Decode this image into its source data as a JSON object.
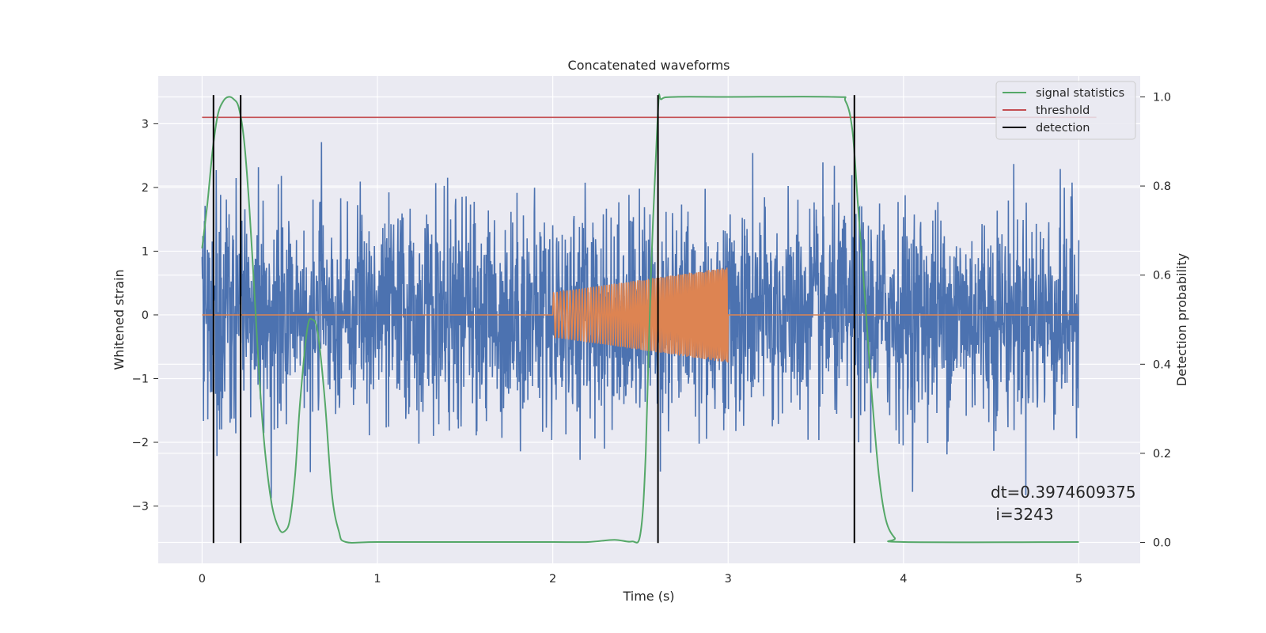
{
  "chart_data": {
    "type": "line",
    "title": "Concatenated waveforms",
    "xlabel": "Time (s)",
    "ylabel": "Whitened strain",
    "ylabel_right": "Detection probability",
    "xlim": [
      -0.25,
      5.35
    ],
    "ylim": [
      -3.9,
      3.75
    ],
    "ylim_right": [
      -0.047,
      1.047
    ],
    "xticks": [
      0,
      1,
      2,
      3,
      4,
      5
    ],
    "yticks": [
      -3,
      -2,
      -1,
      0,
      1,
      2,
      3
    ],
    "yticks_right": [
      0.0,
      0.2,
      0.4,
      0.6,
      0.8,
      1.0
    ],
    "grid": true,
    "legend_position": "top-right",
    "annotation": {
      "line1": "dt=0.3974609375",
      "line2": " i=3243",
      "x": 4.5,
      "y": -3.0
    },
    "series": [
      {
        "name": "",
        "axis": "left",
        "color": "#4c72b0",
        "kind": "noise",
        "x_range": [
          0,
          5
        ],
        "amplitude_sigma": 0.62,
        "peak": 3.3
      },
      {
        "name": "",
        "axis": "left",
        "color": "#dd8452",
        "kind": "chirp",
        "x_range": [
          2,
          3
        ],
        "envelope": [
          0.35,
          0.75
        ],
        "baseline": 0
      },
      {
        "name": "signal statistics",
        "axis": "right",
        "color": "#55a868",
        "x": [
          0,
          0.03,
          0.06,
          0.09,
          0.12,
          0.15,
          0.18,
          0.21,
          0.24,
          0.27,
          0.3,
          0.33,
          0.36,
          0.4,
          0.44,
          0.47,
          0.5,
          0.53,
          0.56,
          0.6,
          0.63,
          0.66,
          0.7,
          0.74,
          0.78,
          0.82,
          1.0,
          1.5,
          2.0,
          2.2,
          2.35,
          2.45,
          2.5,
          2.53,
          2.56,
          2.6,
          2.62,
          2.7,
          3.0,
          3.6,
          3.67,
          3.71,
          3.74,
          3.78,
          3.82,
          3.86,
          3.9,
          3.95,
          4.0,
          5.0
        ],
        "y": [
          0.66,
          0.76,
          0.88,
          0.96,
          0.99,
          1.0,
          0.995,
          0.975,
          0.9,
          0.75,
          0.55,
          0.35,
          0.2,
          0.08,
          0.03,
          0.025,
          0.05,
          0.15,
          0.32,
          0.48,
          0.5,
          0.47,
          0.32,
          0.11,
          0.025,
          0.001,
          0.001,
          0.001,
          0.001,
          0.001,
          0.006,
          0.002,
          0.02,
          0.2,
          0.6,
          0.97,
          0.995,
          1.0,
          1.0,
          1.0,
          0.99,
          0.92,
          0.76,
          0.55,
          0.33,
          0.15,
          0.05,
          0.01,
          0.001,
          0.001
        ]
      },
      {
        "name": "threshold",
        "axis": "left",
        "color": "#c44e52",
        "x": [
          0,
          5.1
        ],
        "y": [
          3.1,
          3.1
        ]
      },
      {
        "name": "detection",
        "axis": "left",
        "color": "#000000",
        "kind": "vlines",
        "x": [
          0.065,
          0.22,
          2.6,
          3.72
        ],
        "y_range": [
          -3.58,
          3.45
        ]
      }
    ]
  }
}
